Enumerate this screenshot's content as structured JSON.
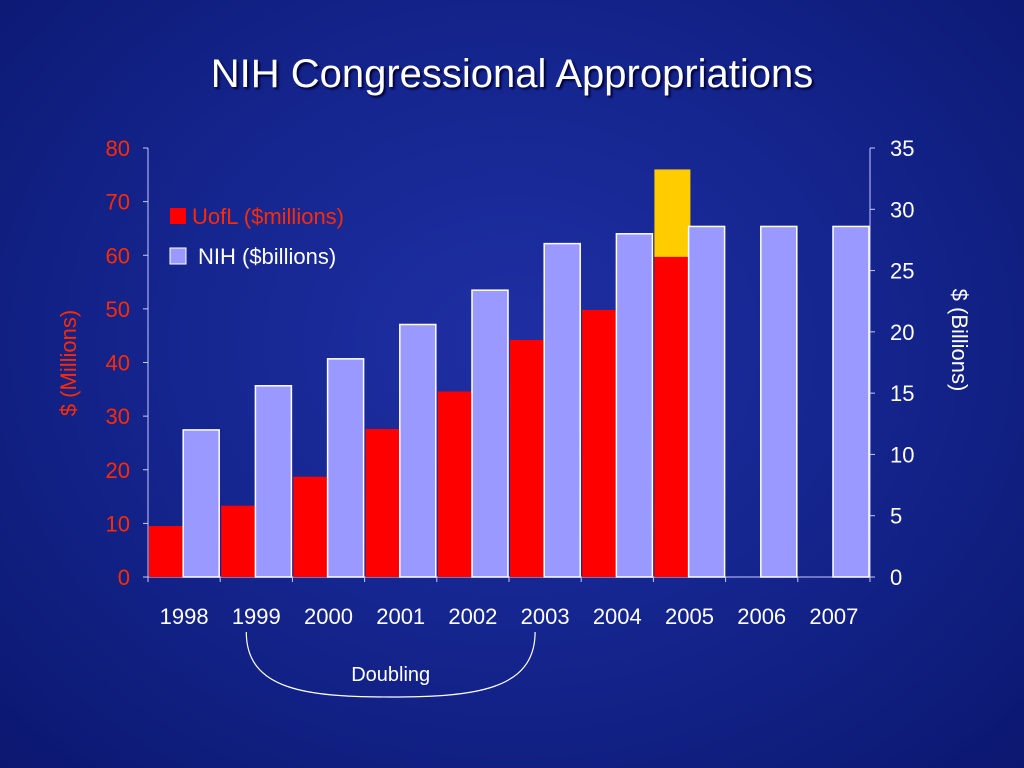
{
  "slide": {
    "title": "NIH Congressional Appropriations"
  },
  "chart_data": {
    "type": "bar",
    "title": "NIH Congressional Appropriations",
    "categories": [
      "1998",
      "1999",
      "2000",
      "2001",
      "2002",
      "2003",
      "2004",
      "2005",
      "2006",
      "2007"
    ],
    "series": [
      {
        "name": "UofL ($millions)",
        "axis": "left",
        "color": "#ff0000",
        "values": [
          9.5,
          13.3,
          18.7,
          27.6,
          34.6,
          44.2,
          49.8,
          59.7,
          null,
          null
        ],
        "stack_top_color": "#ffcc00",
        "stack_top_values": [
          null,
          null,
          null,
          null,
          null,
          null,
          null,
          16.3,
          null,
          null
        ]
      },
      {
        "name": "NIH ($billions)",
        "axis": "right",
        "color": "#9999ff",
        "values": [
          12.0,
          15.6,
          17.8,
          20.6,
          23.4,
          27.2,
          28.0,
          28.6,
          28.6,
          28.6
        ]
      }
    ],
    "left_axis": {
      "label": "$ (Millions)",
      "ylim": [
        0,
        80
      ],
      "ticks": [
        "0",
        "10",
        "20",
        "30",
        "40",
        "50",
        "60",
        "70",
        "80"
      ],
      "color": "#ff2a00"
    },
    "right_axis": {
      "label": "$ (Billions)",
      "ylim": [
        0,
        35
      ],
      "ticks": [
        "0",
        "5",
        "10",
        "15",
        "20",
        "25",
        "30",
        "35"
      ],
      "color": "#ffffff"
    },
    "legend": {
      "placement": "top-left",
      "items": [
        {
          "label": "UofL ($millions)",
          "color": "#ff0000",
          "text_color": "#ff2a00"
        },
        {
          "label": "NIH ($billions)",
          "color": "#9999ff",
          "text_color": "#ffffff"
        }
      ]
    },
    "annotation": {
      "text": "Doubling",
      "span": [
        "1999",
        "2003"
      ]
    },
    "grid": false
  }
}
